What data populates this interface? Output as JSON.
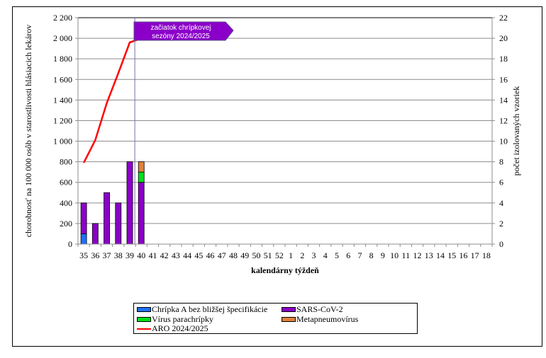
{
  "chart_data": {
    "type": "bar",
    "stacked": true,
    "title": "",
    "xlabel": "kalendárny týždeň",
    "ylabel": "chorobnosť na 100 000 osôb v starostlivosti hlásiacich lekárov",
    "y2label": "počet izolovaných vzoriek",
    "ylim": [
      0,
      2200
    ],
    "y2lim": [
      0,
      22
    ],
    "yticks": [
      "0",
      "200",
      "400",
      "600",
      "800",
      "1 000",
      "1 200",
      "1 400",
      "1 600",
      "1 800",
      "2 000",
      "2 200"
    ],
    "y2ticks": [
      "0",
      "2",
      "4",
      "6",
      "8",
      "10",
      "12",
      "14",
      "16",
      "18",
      "20",
      "22"
    ],
    "grid": true,
    "legend_position": "bottom",
    "categories": [
      "35",
      "36",
      "37",
      "38",
      "39",
      "40",
      "41",
      "42",
      "43",
      "44",
      "45",
      "46",
      "47",
      "48",
      "49",
      "50",
      "51",
      "52",
      "1",
      "2",
      "3",
      "4",
      "5",
      "6",
      "7",
      "8",
      "9",
      "10",
      "11",
      "12",
      "13",
      "14",
      "15",
      "16",
      "17",
      "18"
    ],
    "series": [
      {
        "name": "Chrípka A bez bližšej špecifikácie",
        "axis": "right",
        "color": "#1f6fff",
        "values": [
          1,
          0,
          0,
          0,
          0,
          0
        ]
      },
      {
        "name": "SARS-CoV-2",
        "axis": "right",
        "color": "#8b00c9",
        "values": [
          3,
          2,
          5,
          4,
          8,
          6
        ]
      },
      {
        "name": "Vírus parachrípky",
        "axis": "right",
        "color": "#00e01a",
        "values": [
          0,
          0,
          0,
          0,
          0,
          1
        ]
      },
      {
        "name": "Metapneumovírus",
        "axis": "right",
        "color": "#e0823c",
        "values": [
          0,
          0,
          0,
          0,
          0,
          1
        ]
      },
      {
        "name": "ARO 2024/2025",
        "type": "line",
        "axis": "left",
        "color": "#ff0000",
        "values": [
          790,
          1010,
          1370,
          1660,
          1960,
          2000
        ]
      }
    ],
    "annotations": [
      {
        "text": "začiatok chrípkovej sezóny 2024/2025",
        "week": "40",
        "type": "vertical-line-callout"
      }
    ]
  },
  "legend": {
    "items": [
      {
        "label": "Chrípka A bez bližšej špecifikácie"
      },
      {
        "label": "SARS-CoV-2"
      },
      {
        "label": "Vírus parachrípky"
      },
      {
        "label": "Metapneumovírus"
      },
      {
        "label": "ARO 2024/2025"
      }
    ]
  },
  "callout": {
    "line1": "začiatok chrípkovej",
    "line2": "sezóny 2024/2025"
  }
}
